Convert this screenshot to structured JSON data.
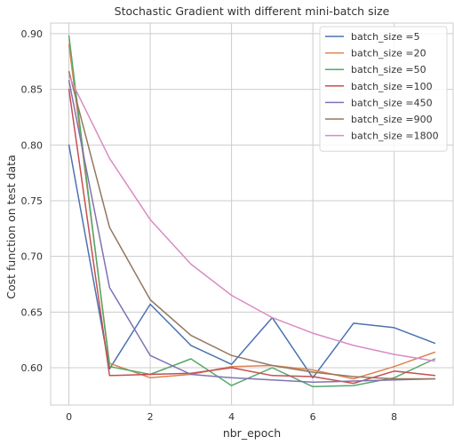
{
  "chart_data": {
    "type": "line",
    "title": "Stochastic Gradient with different mini-batch size",
    "xlabel": "nbr_epoch",
    "ylabel": "Cost function on test data",
    "x": [
      0,
      1,
      2,
      3,
      4,
      5,
      6,
      7,
      8,
      9
    ],
    "xlim": [
      -0.45,
      9.45
    ],
    "ylim": [
      0.5665,
      0.9095
    ],
    "xticks": [
      0,
      2,
      4,
      6,
      8
    ],
    "yticks": [
      0.6,
      0.65,
      0.7,
      0.75,
      0.8,
      0.85,
      0.9
    ],
    "ytick_labels": [
      "0.60",
      "0.65",
      "0.70",
      "0.75",
      "0.80",
      "0.85",
      "0.90"
    ],
    "grid": true,
    "legend_position": "top-right",
    "series": [
      {
        "name": "batch_size =5",
        "color": "#4c72b0",
        "values": [
          0.8,
          0.599,
          0.657,
          0.62,
          0.603,
          0.645,
          0.591,
          0.64,
          0.636,
          0.622
        ]
      },
      {
        "name": "batch_size =20",
        "color": "#dd8452",
        "values": [
          0.89,
          0.604,
          0.591,
          0.594,
          0.601,
          0.602,
          0.598,
          0.59,
          0.601,
          0.614
        ]
      },
      {
        "name": "batch_size =50",
        "color": "#55a868",
        "values": [
          0.898,
          0.601,
          0.594,
          0.608,
          0.584,
          0.6,
          0.583,
          0.584,
          0.591,
          0.608
        ]
      },
      {
        "name": "batch_size =100",
        "color": "#c44e52",
        "values": [
          0.85,
          0.593,
          0.594,
          0.595,
          0.6,
          0.593,
          0.592,
          0.586,
          0.597,
          0.593
        ]
      },
      {
        "name": "batch_size =450",
        "color": "#8172b3",
        "values": [
          0.858,
          0.672,
          0.611,
          0.594,
          0.591,
          0.589,
          0.587,
          0.588,
          0.589,
          0.59
        ]
      },
      {
        "name": "batch_size =900",
        "color": "#937860",
        "values": [
          0.866,
          0.726,
          0.661,
          0.629,
          0.611,
          0.602,
          0.596,
          0.592,
          0.59,
          0.59
        ]
      },
      {
        "name": "batch_size =1800",
        "color": "#da8bc3",
        "values": [
          0.862,
          0.788,
          0.733,
          0.693,
          0.665,
          0.645,
          0.631,
          0.62,
          0.612,
          0.606
        ]
      }
    ]
  }
}
